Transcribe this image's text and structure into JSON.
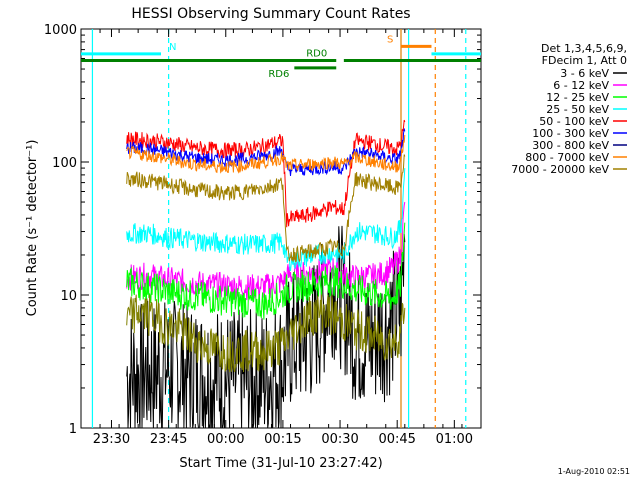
{
  "chart_data": {
    "type": "line",
    "title": "HESSI Observing Summary Count Rates",
    "xlabel": "Start Time (31-Jul-10 23:27:42)",
    "ylabel": "Count Rate (s⁻¹ detector⁻¹)",
    "y_scale": "log",
    "ylim": [
      1,
      1000
    ],
    "xlim": [
      "23:22",
      "01:07"
    ],
    "x_ticks": [
      "23:30",
      "23:45",
      "00:00",
      "00:15",
      "00:30",
      "00:45",
      "01:00"
    ],
    "y_ticks": [
      "1",
      "10",
      "100",
      "1000"
    ],
    "legend": {
      "placement": "right",
      "header": [
        "Det 1,3,4,5,6,9,",
        "FDecim 1, Att 0"
      ]
    },
    "series": [
      {
        "name": "3 - 6 keV",
        "color": "#000000",
        "x": [
          "23:34",
          "23:45",
          "23:55",
          "00:05",
          "00:10",
          "00:15",
          "00:17",
          "00:22",
          "00:25",
          "00:28",
          "00:31",
          "00:34",
          "00:38",
          "00:43",
          "00:46",
          "00:47"
        ],
        "values": [
          2.5,
          2.8,
          2.5,
          2.2,
          2.4,
          3.0,
          4.5,
          5,
          7,
          12,
          9,
          5,
          4.5,
          6,
          8,
          25
        ]
      },
      {
        "name": "6 - 12 keV",
        "color": "#ff00ff",
        "x": [
          "23:34",
          "23:40",
          "23:45",
          "23:55",
          "00:05",
          "00:10",
          "00:15",
          "00:16",
          "00:22",
          "00:28",
          "00:31",
          "00:34",
          "00:40",
          "00:44",
          "00:46",
          "00:47"
        ],
        "values": [
          13.5,
          14,
          13,
          12,
          11.5,
          11.5,
          12.5,
          14,
          14.5,
          16,
          14,
          13.5,
          14,
          16,
          20,
          50
        ]
      },
      {
        "name": "12 - 25 keV",
        "color": "#00ff00",
        "x": [
          "23:34",
          "23:40",
          "23:45",
          "23:55",
          "00:05",
          "00:10",
          "00:15",
          "00:16",
          "00:22",
          "00:28",
          "00:31",
          "00:34",
          "00:40",
          "00:44",
          "00:46",
          "00:47"
        ],
        "values": [
          12.5,
          11.5,
          10.5,
          9.5,
          8.8,
          8.5,
          10,
          11,
          12,
          13,
          12,
          11,
          10,
          9.5,
          12,
          35
        ]
      },
      {
        "name": "25 - 50 keV",
        "color": "#00ffff",
        "x": [
          "23:34",
          "23:40",
          "23:45",
          "23:55",
          "00:05",
          "00:10",
          "00:15",
          "00:16",
          "00:22",
          "00:28",
          "00:31",
          "00:34",
          "00:40",
          "00:44",
          "00:46",
          "00:47"
        ],
        "values": [
          29,
          29,
          27,
          25,
          24,
          24,
          25,
          18,
          19.5,
          21,
          20,
          30,
          29,
          27,
          32,
          90
        ]
      },
      {
        "name": "50 - 100 keV",
        "color": "#ff0000",
        "x": [
          "23:34",
          "23:40",
          "23:45",
          "23:50",
          "23:55",
          "00:00",
          "00:05",
          "00:10",
          "00:15",
          "00:16",
          "00:22",
          "00:28",
          "00:31",
          "00:34",
          "00:38",
          "00:42",
          "00:45",
          "00:46",
          "00:47"
        ],
        "values": [
          150,
          145,
          140,
          130,
          125,
          122,
          123,
          132,
          145,
          37,
          40,
          46,
          44,
          145,
          140,
          130,
          125,
          140,
          200
        ]
      },
      {
        "name": "100 - 300 keV",
        "color": "#0000ff",
        "x": [
          "23:34",
          "23:40",
          "23:45",
          "23:50",
          "23:55",
          "00:00",
          "00:05",
          "00:10",
          "00:15",
          "00:16",
          "00:22",
          "00:28",
          "00:31",
          "00:34",
          "00:38",
          "00:42",
          "00:45",
          "00:46",
          "00:47"
        ],
        "values": [
          128,
          125,
          118,
          110,
          105,
          103,
          105,
          112,
          122,
          88,
          88,
          92,
          89,
          120,
          115,
          108,
          104,
          118,
          170
        ]
      },
      {
        "name": "300 - 800 keV",
        "color": "#000080",
        "x": [],
        "values": []
      },
      {
        "name": "800 - 7000 keV",
        "color": "#ff8000",
        "x": [
          "23:34",
          "23:40",
          "23:45",
          "23:50",
          "23:55",
          "00:00",
          "00:05",
          "00:10",
          "00:15",
          "00:16",
          "00:22",
          "00:28",
          "00:31",
          "00:34",
          "00:38",
          "00:42",
          "00:45",
          "00:46",
          "00:47"
        ],
        "values": [
          118,
          112,
          105,
          98,
          94,
          92,
          94,
          100,
          108,
          93,
          96,
          100,
          96,
          108,
          102,
          95,
          92,
          105,
          160
        ]
      },
      {
        "name": "7000 - 20000 keV",
        "color": "#a08000",
        "x": [
          "23:34",
          "23:40",
          "23:45",
          "23:50",
          "23:55",
          "00:00",
          "00:05",
          "00:10",
          "00:15",
          "00:16",
          "00:22",
          "00:28",
          "00:31",
          "00:34",
          "00:38",
          "00:42",
          "00:45",
          "00:46",
          "00:47"
        ],
        "values": [
          75,
          72,
          68,
          63,
          60,
          58,
          60,
          64,
          70,
          20,
          21,
          23,
          22,
          75,
          70,
          66,
          63,
          70,
          110
        ]
      },
      {
        "name": "",
        "color": "#808000",
        "x": [
          "23:34",
          "23:37",
          "23:40",
          "23:44",
          "23:48",
          "23:52",
          "23:56",
          "00:00",
          "00:05",
          "00:10",
          "00:15",
          "00:18",
          "00:22",
          "00:26",
          "00:30",
          "00:34",
          "00:38",
          "00:42",
          "00:45",
          "00:47"
        ],
        "values": [
          6.5,
          7.5,
          7.0,
          6.0,
          5.5,
          4.5,
          4.0,
          3.8,
          3.8,
          3.8,
          4.2,
          5.5,
          7.0,
          7.5,
          6.5,
          5.5,
          5.0,
          4.5,
          4.5,
          8.0
        ]
      }
    ],
    "flag_bars": [
      {
        "label": "N",
        "color": "#00ffff",
        "x_start": "23:22",
        "x_end": "23:43",
        "x_end2": "00:49",
        "x_start2": "00:54",
        "x_stop2": "01:07",
        "y": 650
      },
      {
        "label": "RD0",
        "color": "#008000",
        "x_start": "23:22",
        "x_end": "00:29",
        "x_start2": "00:31",
        "x_stop2": "01:07",
        "y": 580
      },
      {
        "label": "RD6",
        "color": "#008000",
        "x_start": "00:18",
        "x_end": "00:29",
        "y": 510
      },
      {
        "label": "S",
        "color": "#ff8000",
        "x_start": "00:46",
        "x_end": "00:54",
        "y": 740
      }
    ],
    "vertical_markers": [
      {
        "x": "23:25",
        "color": "#00ffff",
        "style": "solid"
      },
      {
        "x": "23:45",
        "color": "#00ffff",
        "style": "dashed"
      },
      {
        "x": "00:46",
        "color": "#00ffff",
        "style": "solid"
      },
      {
        "x": "00:48",
        "color": "#00ffff",
        "style": "solid"
      },
      {
        "x": "00:46",
        "color": "#ff8000",
        "style": "solid"
      },
      {
        "x": "00:55",
        "color": "#ff8000",
        "style": "dashed"
      },
      {
        "x": "01:03",
        "color": "#00ffff",
        "style": "dashed"
      }
    ],
    "timestamp": "1-Aug-2010 02:51"
  }
}
